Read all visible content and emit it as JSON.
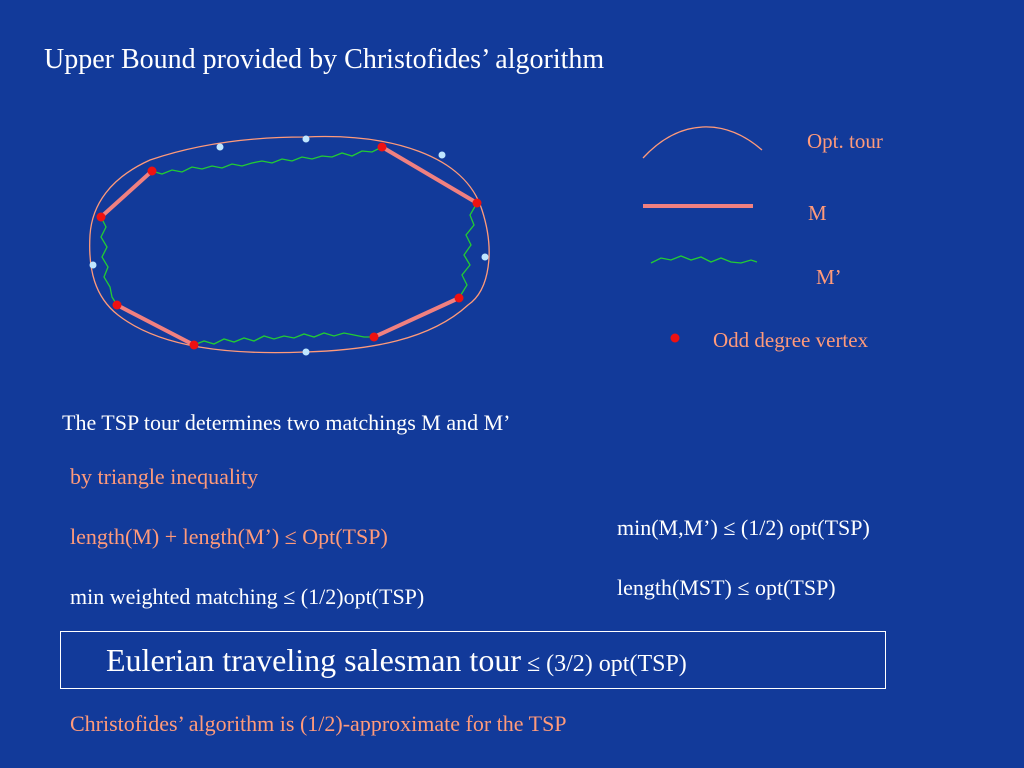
{
  "title": "Upper Bound provided by Christofides’ algorithm",
  "legend": {
    "opt_tour": "Opt. tour",
    "m": "M",
    "m_prime": "M’",
    "odd_vertex": "Odd degree vertex"
  },
  "lines": {
    "tsp_matchings": "The TSP tour determines two matchings M and M’",
    "triangle": "by triangle inequality",
    "length_sum": "length(M) + length(M’) ≤ Opt(TSP)",
    "min_weighted": "min weighted matching ≤ (1/2)opt(TSP)",
    "min_mm": "min(M,M’) ≤ (1/2) opt(TSP)",
    "mst": "length(MST) ≤ opt(TSP)"
  },
  "box": {
    "main": "Eulerian traveling salesman tour",
    "tail": " ≤ (3/2) opt(TSP)"
  },
  "footer": "Christofides’ algorithm is (1/2)-approximate for the TSP",
  "colors": {
    "background": "#123a9a",
    "opt_tour": "#ff9a7a",
    "matching_m": "#f08080",
    "matching_m_prime": "#22cc33",
    "odd_vertex": "#ee1111",
    "even_vertex": "#bfe6ff",
    "text_accent": "#ff9a7a"
  }
}
